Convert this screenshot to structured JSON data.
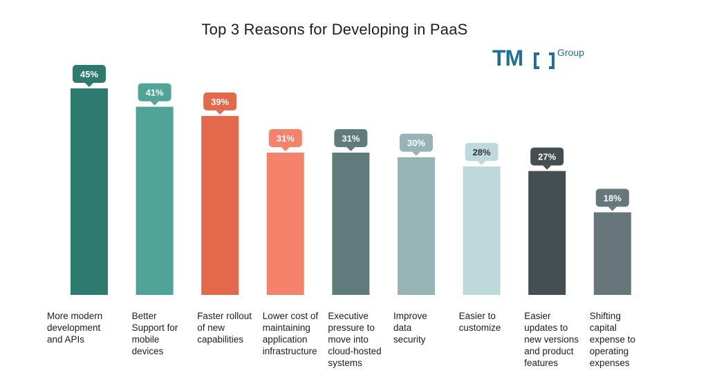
{
  "chart_data": {
    "type": "bar",
    "title": "Top 3 Reasons for Developing in PaaS",
    "categories": [
      "More modern development and APIs",
      "Better Support for mobile devices",
      "Faster rollout of new capabilities",
      "Lower cost of maintaining application infrastructure",
      "Executive pressure to move into cloud-hosted systems",
      "Improve data security",
      "Easier to customize",
      "Easier updates to new versions and product features",
      "Shifting capital expense to operating expenses"
    ],
    "category_lines": [
      [
        "More modern",
        "development",
        "and APIs"
      ],
      [
        "Better",
        "Support for",
        "mobile",
        "devices"
      ],
      [
        "Faster rollout",
        "of new",
        "capabilities"
      ],
      [
        "Lower cost of",
        "maintaining",
        "application",
        "infrastructure"
      ],
      [
        "Executive",
        "pressure to",
        "move into",
        "cloud-hosted",
        "systems"
      ],
      [
        "Improve",
        "data",
        "security"
      ],
      [
        "Easier to",
        "customize"
      ],
      [
        "Easier",
        "updates to",
        "new versions",
        "and product",
        "features"
      ],
      [
        "Shifting",
        "capital",
        "expense to",
        "operating",
        "expenses"
      ]
    ],
    "values": [
      45,
      41,
      39,
      31,
      31,
      30,
      28,
      27,
      18
    ],
    "data_labels": [
      "45%",
      "41%",
      "39%",
      "31%",
      "31%",
      "30%",
      "28%",
      "27%",
      "18%"
    ],
    "colors": [
      "#2e7a6e",
      "#4fa397",
      "#e2694b",
      "#f5836b",
      "#5f7b7c",
      "#96b4b6",
      "#bdd9dc",
      "#444e53",
      "#66767a"
    ],
    "label_text_colors": [
      "#ffffff",
      "#ffffff",
      "#ffffff",
      "#ffffff",
      "#ffffff",
      "#ffffff",
      "#333333",
      "#ffffff",
      "#ffffff"
    ],
    "ylim": [
      0,
      45
    ],
    "grid": false,
    "xlabel": "",
    "ylabel": ""
  },
  "logo": {
    "mark": "TM",
    "suffix": "Group",
    "color": "#1f6f96"
  }
}
